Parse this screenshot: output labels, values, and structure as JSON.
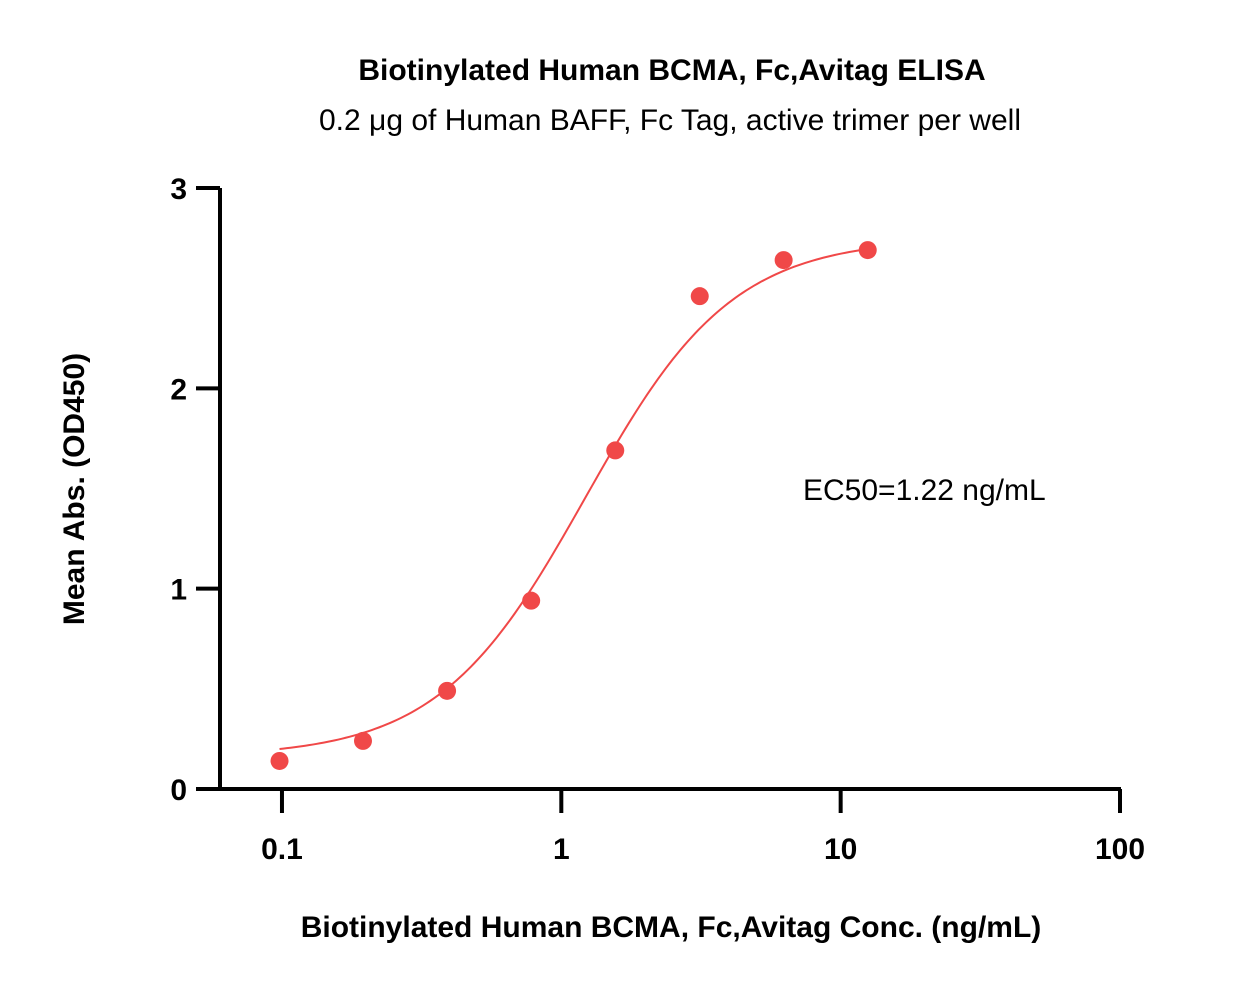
{
  "chart_data": {
    "type": "scatter",
    "title": "Biotinylated Human BCMA, Fc,Avitag ELISA",
    "subtitle": "0.2 μg of Human BAFF, Fc Tag, active trimer per well",
    "xlabel": "Biotinylated Human BCMA, Fc,Avitag Conc. (ng/mL)",
    "ylabel": "Mean Abs. (OD450)",
    "x_scale": "log",
    "xlim": [
      0.06,
      100
    ],
    "ylim": [
      0,
      3
    ],
    "x_ticks": [
      0.1,
      1,
      10,
      100
    ],
    "x_tick_labels": [
      "0.1",
      "1",
      "10",
      "100"
    ],
    "y_ticks": [
      0,
      1,
      2,
      3
    ],
    "y_tick_labels": [
      "0",
      "1",
      "2",
      "3"
    ],
    "grid": false,
    "annotation": "EC50=1.22 ng/mL",
    "colors": {
      "series": "#f04848",
      "axis": "#000000"
    },
    "series": [
      {
        "x": [
          0.098,
          0.195,
          0.39,
          0.78,
          1.56,
          3.13,
          6.25,
          12.5
        ],
        "y": [
          0.14,
          0.24,
          0.49,
          0.94,
          1.69,
          2.46,
          2.64,
          2.69
        ]
      }
    ],
    "fit_curve": {
      "model": "4PL",
      "bottom": 0.16,
      "top": 2.75,
      "ec50": 1.22,
      "hill": 1.65
    }
  }
}
